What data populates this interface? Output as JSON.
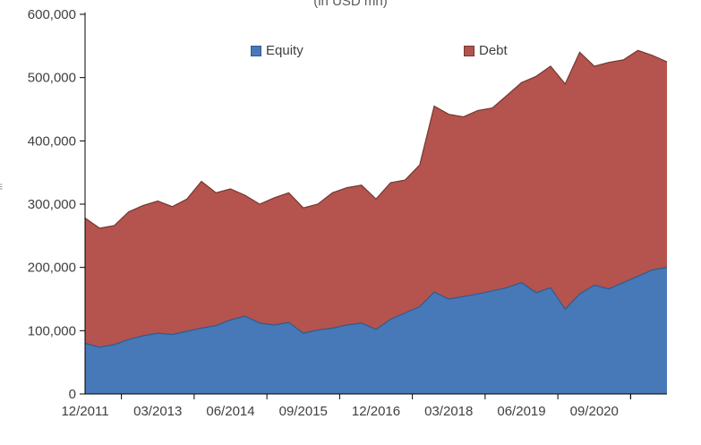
{
  "chart": {
    "menu_icon": "≡"
  },
  "chart_data": {
    "type": "area",
    "stacked": true,
    "title": "(in USD mn)",
    "legend_position": "top",
    "grid": false,
    "x": [
      "12/2011",
      "03/2012",
      "06/2012",
      "09/2012",
      "12/2012",
      "03/2013",
      "06/2013",
      "09/2013",
      "12/2013",
      "03/2014",
      "06/2014",
      "09/2014",
      "12/2014",
      "03/2015",
      "06/2015",
      "09/2015",
      "12/2015",
      "03/2016",
      "06/2016",
      "09/2016",
      "12/2016",
      "03/2017",
      "06/2017",
      "09/2017",
      "12/2017",
      "03/2018",
      "06/2018",
      "09/2018",
      "12/2018",
      "03/2019",
      "06/2019",
      "09/2019",
      "12/2019",
      "03/2020",
      "06/2020",
      "09/2020",
      "12/2020",
      "03/2021",
      "06/2021",
      "09/2021",
      "12/2021"
    ],
    "x_tick_labels": [
      "12/2011",
      "03/2013",
      "06/2014",
      "09/2015",
      "12/2016",
      "03/2018",
      "06/2019",
      "09/2020"
    ],
    "x_tick_indices": [
      0,
      5,
      10,
      15,
      20,
      25,
      30,
      35
    ],
    "series": [
      {
        "name": "Equity",
        "color": "#4779b8",
        "border": "#2c5d8f",
        "values": [
          80000,
          74000,
          78000,
          86000,
          92000,
          96000,
          94000,
          99000,
          104000,
          108000,
          117000,
          123000,
          112000,
          109000,
          113000,
          96000,
          101000,
          104000,
          109000,
          112000,
          102000,
          118000,
          128000,
          138000,
          161000,
          150000,
          154000,
          158000,
          163000,
          168000,
          176000,
          160000,
          168000,
          134000,
          158000,
          172000,
          166000,
          176000,
          186000,
          196000,
          200000
        ]
      },
      {
        "name": "Debt",
        "color": "#b5534e",
        "border": "#73392f",
        "values": [
          198000,
          188000,
          188000,
          202000,
          206000,
          209000,
          202000,
          209000,
          232000,
          210000,
          207000,
          191000,
          188000,
          201000,
          205000,
          198000,
          199000,
          214000,
          217000,
          218000,
          206000,
          216000,
          210000,
          224000,
          294000,
          292000,
          284000,
          290000,
          289000,
          304000,
          316000,
          342000,
          350000,
          356000,
          382000,
          346000,
          358000,
          352000,
          357000,
          339000,
          325000
        ]
      }
    ],
    "ylim": [
      0,
      600000
    ],
    "ytick_step": 100000,
    "ytick_labels": [
      "0",
      "100,000",
      "200,000",
      "300,000",
      "400,000",
      "500,000",
      "600,000"
    ],
    "axis_color": "#000000",
    "label_color": "#404040"
  }
}
